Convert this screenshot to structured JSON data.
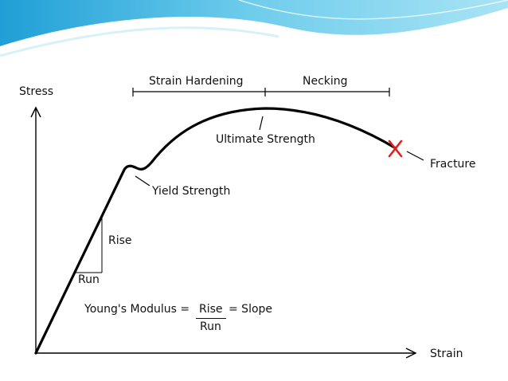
{
  "diagram": {
    "axes": {
      "y_label": "Stress",
      "x_label": "Strain"
    },
    "regions": {
      "strain_hardening": "Strain Hardening",
      "necking": "Necking"
    },
    "points": {
      "ultimate_strength": "Ultimate Strength",
      "yield_strength": "Yield Strength",
      "fracture": "Fracture"
    },
    "slope_triangle": {
      "rise": "Rise",
      "run": "Run"
    },
    "formula": {
      "lhs": "Young's Modulus =",
      "numerator": "Rise",
      "denominator": "Run",
      "rhs": "= Slope"
    }
  },
  "colors": {
    "curve": "#000000",
    "fracture_mark": "#e02020",
    "banner_blue": "#2aa7d8",
    "banner_light": "#bfe9f7"
  }
}
